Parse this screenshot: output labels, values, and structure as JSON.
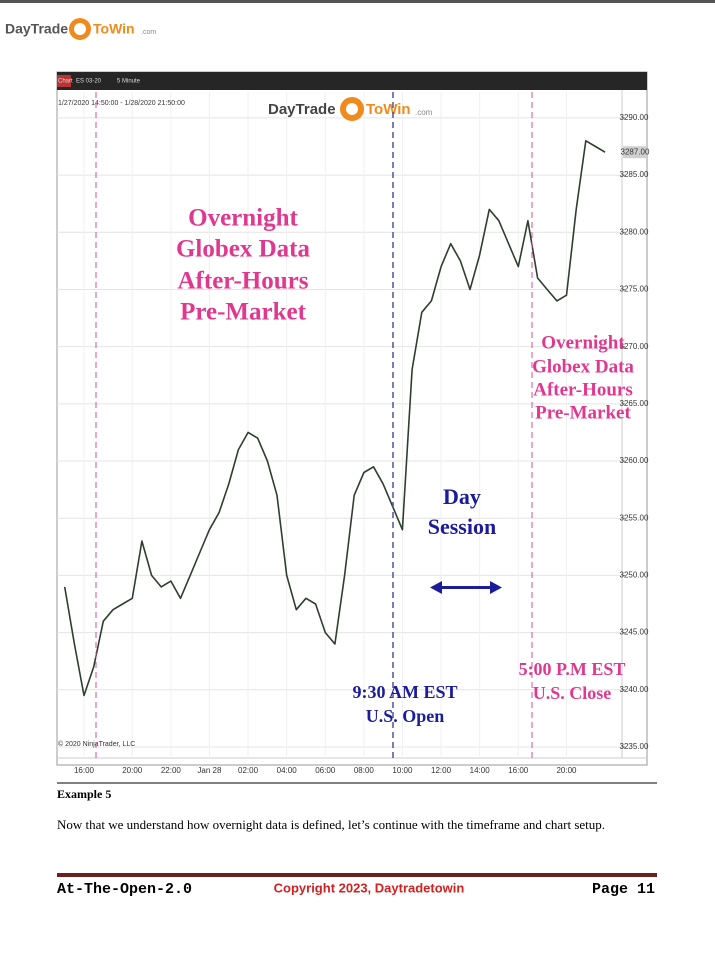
{
  "header": {
    "logo": [
      "DayTrade",
      "ToWin",
      ".com"
    ]
  },
  "chart_data": {
    "type": "line",
    "toolbar": [
      "Chart",
      "ES 03-20",
      "5 Minute"
    ],
    "range_label": "1/27/2020 14:50:00 - 1/28/2020 21:50:00",
    "logo": [
      "DayTrade",
      "ToWin",
      ".com"
    ],
    "copyright": "© 2020 NinjaTrader, LLC",
    "annotations": [
      {
        "lines": [
          "Overnight",
          "Globex Data",
          "After-Hours",
          "Pre-Market"
        ]
      },
      {
        "lines": [
          "Overnight",
          "Globex Data",
          "After-Hours",
          "Pre-Market"
        ]
      },
      {
        "lines": [
          "Day",
          "Session"
        ]
      },
      {
        "lines": [
          "9:30 AM EST",
          "U.S. Open"
        ]
      },
      {
        "lines": [
          "5:00 P.M EST",
          "U.S. Close"
        ]
      }
    ],
    "categories": [
      null,
      null,
      "16:00",
      null,
      null,
      null,
      null,
      "20:00",
      null,
      null,
      null,
      "22:00",
      null,
      null,
      null,
      "Jan 28",
      null,
      null,
      null,
      "02:00",
      null,
      null,
      null,
      "04:00",
      null,
      null,
      null,
      "06:00",
      null,
      null,
      null,
      "08:00",
      null,
      null,
      null,
      "10:00",
      null,
      null,
      null,
      "12:00",
      null,
      null,
      null,
      "14:00",
      null,
      null,
      null,
      "16:00",
      null,
      null,
      null,
      null,
      "20:00",
      null,
      null,
      null,
      null
    ],
    "series": [
      {
        "color": "#2e3f2e",
        "values": [
          3249,
          3244,
          3239.5,
          3242,
          3246,
          3247,
          3247.5,
          3248,
          3253,
          3250,
          3249,
          3249.5,
          3248,
          3250,
          3252,
          3254,
          3255.5,
          3258,
          3261,
          3262.5,
          3262,
          3260,
          3257,
          3250,
          3247,
          3248,
          3247.5,
          3245,
          3244,
          3250,
          3257,
          3259,
          3259.5,
          3258,
          3256,
          3254,
          3268,
          3273,
          3274,
          3277,
          3279,
          3277.5,
          3275,
          3278,
          3282,
          3281,
          3279,
          3277,
          3281,
          3276,
          3275,
          3274,
          3274.5,
          3282,
          3288,
          3287.5,
          3287
        ]
      }
    ],
    "ylim": [
      3234.3,
      3292
    ],
    "yticks": [
      {
        "value": 3235,
        "label": "3235.00"
      },
      {
        "value": 3240,
        "label": "3240.00"
      },
      {
        "value": 3245,
        "label": "3245.00"
      },
      {
        "value": 3250,
        "label": "3250.00"
      },
      {
        "value": 3255,
        "label": "3255.00"
      },
      {
        "value": 3260,
        "label": "3260.00"
      },
      {
        "value": 3265,
        "label": "3265.00"
      },
      {
        "value": 3270,
        "label": "3270.00"
      },
      {
        "value": 3275,
        "label": "3275.00"
      },
      {
        "value": 3280,
        "label": "3280.00"
      },
      {
        "value": 3285,
        "label": "3285.00"
      },
      {
        "value": 3290,
        "label": "3290.00"
      }
    ],
    "last_price": {
      "value": 3287,
      "label": "3287.00"
    },
    "grid": true
  },
  "caption": "Example 5",
  "body": "Now that we understand how overnight data is defined, let’s continue with the timeframe and chart setup.",
  "footer": {
    "left": "At-The-Open-2.0",
    "center": "Copyright 2023, Daytradetowin",
    "right": "Page 11"
  }
}
